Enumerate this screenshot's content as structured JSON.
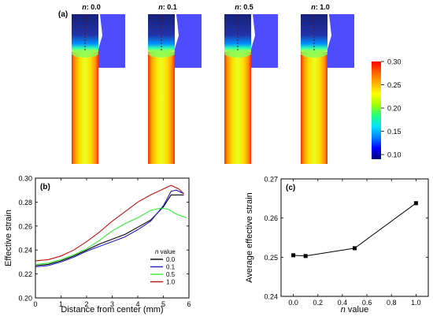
{
  "panel_a": {
    "label": "(a)",
    "sims": [
      {
        "n_prefix": "n",
        "n_value": ": 0.0"
      },
      {
        "n_prefix": "n",
        "n_value": ": 0.1"
      },
      {
        "n_prefix": "n",
        "n_value": ": 0.5"
      },
      {
        "n_prefix": "n",
        "n_value": ": 1.0"
      }
    ],
    "colorbar": {
      "ticks": [
        "0.30",
        "0.25",
        "0.20",
        "0.15",
        "0.10"
      ],
      "min": 0.09,
      "max": 0.3,
      "colors": [
        "#00007a",
        "#0000ff",
        "#0080ff",
        "#00e0ff",
        "#20ff80",
        "#a0ff00",
        "#ffff00",
        "#ffb000",
        "#ff6000",
        "#ff0000"
      ]
    }
  },
  "chart_data": [
    {
      "type": "line",
      "panel_label": "(b)",
      "xlabel": "Distance from center (mm)",
      "ylabel": "Effective strain",
      "xlim": [
        0,
        6
      ],
      "ylim": [
        0.2,
        0.3
      ],
      "xticks": [
        0,
        1,
        2,
        3,
        4,
        5,
        6
      ],
      "yticks": [
        0.2,
        0.22,
        0.24,
        0.26,
        0.28,
        0.3
      ],
      "xtick_labels": [
        "0",
        "1",
        "2",
        "3",
        "4",
        "5",
        "6"
      ],
      "ytick_labels": [
        "0.20",
        "0.22",
        "0.24",
        "0.26",
        "0.28",
        "0.30"
      ],
      "legend_title_italic": "n",
      "legend_title_rest": " value",
      "legend_position": "right-center",
      "series": [
        {
          "name": "0.0",
          "color": "#000000",
          "x": [
            0,
            0.5,
            1.0,
            1.5,
            2.0,
            2.5,
            3.0,
            3.5,
            4.0,
            4.5,
            5.0,
            5.3,
            5.6,
            5.8
          ],
          "y": [
            0.227,
            0.228,
            0.231,
            0.235,
            0.24,
            0.245,
            0.249,
            0.253,
            0.259,
            0.265,
            0.276,
            0.286,
            0.286,
            0.286
          ]
        },
        {
          "name": "0.1",
          "color": "#1f1fcf",
          "x": [
            0,
            0.5,
            1.0,
            1.5,
            2.0,
            2.5,
            3.0,
            3.5,
            4.0,
            4.5,
            5.0,
            5.3,
            5.5,
            5.8
          ],
          "y": [
            0.226,
            0.227,
            0.23,
            0.234,
            0.239,
            0.243,
            0.247,
            0.251,
            0.257,
            0.264,
            0.277,
            0.289,
            0.29,
            0.287
          ]
        },
        {
          "name": "0.5",
          "color": "#33ee33",
          "x": [
            0,
            0.5,
            1.0,
            1.5,
            2.0,
            2.5,
            3.0,
            3.5,
            4.0,
            4.5,
            4.9,
            5.2,
            5.5,
            5.9
          ],
          "y": [
            0.228,
            0.229,
            0.232,
            0.236,
            0.241,
            0.248,
            0.256,
            0.262,
            0.267,
            0.273,
            0.275,
            0.274,
            0.27,
            0.267
          ]
        },
        {
          "name": "1.0",
          "color": "#c01010",
          "x": [
            0,
            0.5,
            1.0,
            1.5,
            2.0,
            2.5,
            3.0,
            3.5,
            4.0,
            4.5,
            5.0,
            5.3,
            5.6,
            5.8
          ],
          "y": [
            0.231,
            0.232,
            0.235,
            0.24,
            0.247,
            0.255,
            0.264,
            0.272,
            0.28,
            0.286,
            0.291,
            0.294,
            0.291,
            0.287
          ]
        }
      ]
    },
    {
      "type": "line",
      "panel_label": "(c)",
      "xlabel_italic": "n",
      "xlabel_rest": " value",
      "ylabel": "Average effective strain",
      "xlim": [
        -0.1,
        1.1
      ],
      "ylim": [
        0.24,
        0.27
      ],
      "xticks": [
        0.0,
        0.2,
        0.4,
        0.6,
        0.8,
        1.0
      ],
      "yticks": [
        0.24,
        0.25,
        0.26,
        0.27
      ],
      "xtick_labels": [
        "0.0",
        "0.2",
        "0.4",
        "0.6",
        "0.8",
        "1.0"
      ],
      "ytick_labels": [
        "0.24",
        "0.25",
        "0.26",
        "0.27"
      ],
      "series": [
        {
          "color": "#000000",
          "marker": "square",
          "x": [
            0.0,
            0.1,
            0.5,
            1.0
          ],
          "y": [
            0.2505,
            0.2503,
            0.2523,
            0.2638
          ]
        }
      ]
    }
  ]
}
